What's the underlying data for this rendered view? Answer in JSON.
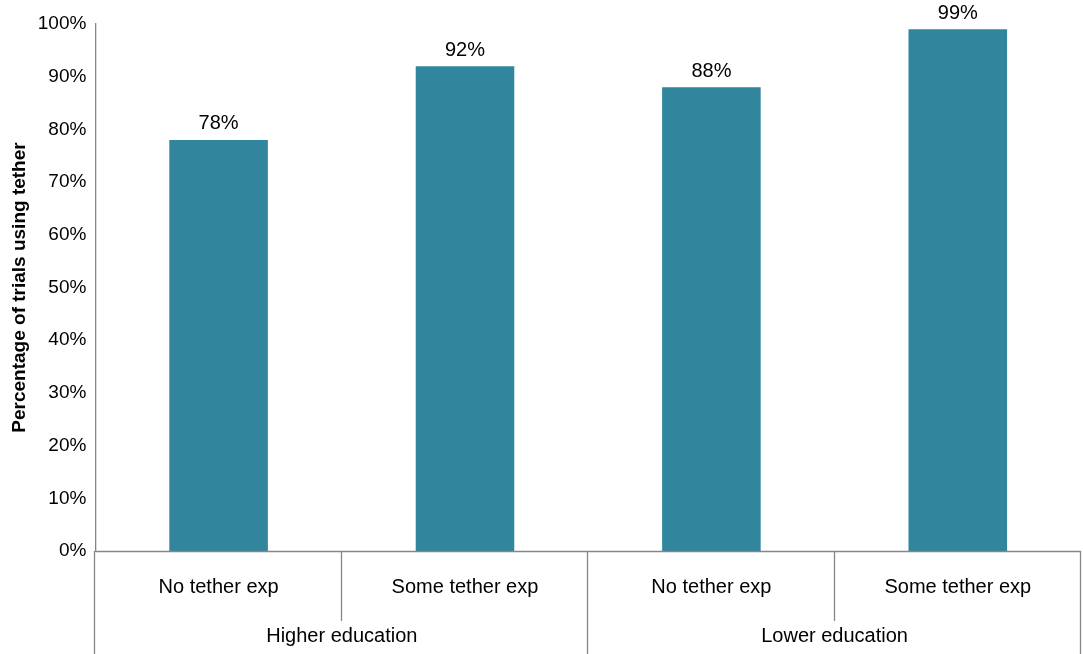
{
  "chart_data": {
    "type": "bar",
    "ylabel": "Percentage of trials using tether",
    "categories": [
      "No tether exp",
      "Some tether exp",
      "No tether exp",
      "Some tether exp"
    ],
    "values": [
      78,
      92,
      88,
      99
    ],
    "color": "#31859c",
    "value_labels": [
      "78%",
      "92%",
      "88%",
      "99%"
    ],
    "ylim": [
      0,
      100
    ],
    "yticks": [
      {
        "value": 0,
        "label": "0%"
      },
      {
        "value": 10,
        "label": "10%"
      },
      {
        "value": 20,
        "label": "20%"
      },
      {
        "value": 30,
        "label": "30%"
      },
      {
        "value": 40,
        "label": "40%"
      },
      {
        "value": 50,
        "label": "50%"
      },
      {
        "value": 60,
        "label": "60%"
      },
      {
        "value": 70,
        "label": "70%"
      },
      {
        "value": 80,
        "label": "80%"
      },
      {
        "value": 90,
        "label": "90%"
      },
      {
        "value": 100,
        "label": "100%"
      }
    ],
    "annotations": [
      "Higher education",
      "Lower education"
    ],
    "grid": false,
    "legend": false
  }
}
